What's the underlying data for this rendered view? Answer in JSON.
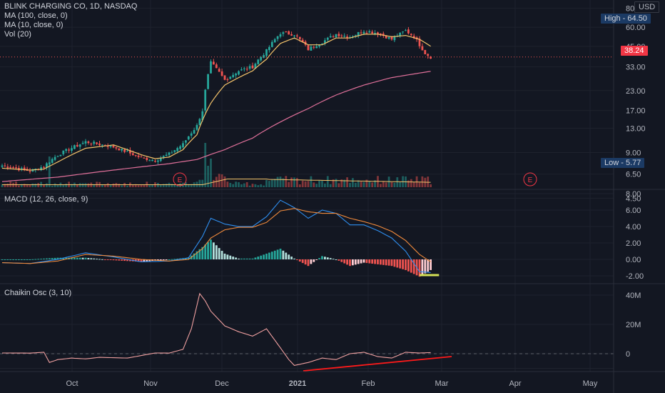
{
  "header": {
    "symbol": "BLINK CHARGING CO, 1D, NASDAQ",
    "ma100": "MA (100, close, 0)",
    "ma10": "MA (10, close, 0)",
    "vol": "Vol (20)",
    "currency": "USD"
  },
  "tags": {
    "high": "High  -  64.50",
    "low": "Low  -  5.77",
    "last": "38.24"
  },
  "panes": {
    "macd_label": "MACD (12, 26, close, 9)",
    "chaikin_label": "Chaikin Osc (3, 10)"
  },
  "earnings_marker": "E",
  "colors": {
    "background": "#131722",
    "up": "#26a69a",
    "down": "#ef5350",
    "ma10": "#f5c46b",
    "ma100": "#e0709a",
    "macd": "#2f8ff0",
    "signal": "#f08a3c",
    "chaikin": "#f0a0a0",
    "trendline": "#ff1a1a",
    "high_tag": "#1b3a64",
    "low_tag": "#1b3a64",
    "last_tag": "#f23645"
  },
  "chart_data": [
    {
      "type": "candlestick",
      "title": "BLINK CHARGING CO, 1D, NASDAQ",
      "y_scale": "log",
      "y_ticks": [
        4.5,
        6.5,
        9.0,
        13.0,
        17.0,
        23.0,
        33.0,
        45.0,
        60.0,
        80
      ],
      "y_tick_labels": [
        "4.50",
        "6.50",
        "9.00",
        "13.00",
        "17.00",
        "23.00",
        "33.00",
        "45.00",
        "60.00",
        "80"
      ],
      "x_tick_labels": [
        "Oct",
        "Nov",
        "Dec",
        "2021",
        "Feb",
        "Mar",
        "Apr",
        "May"
      ],
      "high": 64.5,
      "low": 5.77,
      "last": 38.24,
      "series_anchors": {
        "close": [
          [
            0,
            7.4
          ],
          [
            10,
            6.8
          ],
          [
            15,
            7.3
          ],
          [
            20,
            8.7
          ],
          [
            30,
            10.6
          ],
          [
            40,
            9.8
          ],
          [
            50,
            8.3
          ],
          [
            55,
            8.0
          ],
          [
            60,
            8.8
          ],
          [
            65,
            10.2
          ],
          [
            70,
            13.5
          ],
          [
            72,
            17
          ],
          [
            75,
            35
          ],
          [
            80,
            27
          ],
          [
            85,
            31
          ],
          [
            90,
            33
          ],
          [
            95,
            42
          ],
          [
            100,
            55
          ],
          [
            105,
            54
          ],
          [
            110,
            43
          ],
          [
            115,
            48
          ],
          [
            120,
            54
          ],
          [
            125,
            52
          ],
          [
            130,
            57
          ],
          [
            135,
            55
          ],
          [
            140,
            50
          ],
          [
            145,
            57
          ],
          [
            148,
            52
          ],
          [
            150,
            46
          ],
          [
            152,
            40.5
          ],
          [
            154,
            38.24
          ]
        ],
        "ma10": [
          [
            0,
            7.1
          ],
          [
            10,
            6.9
          ],
          [
            15,
            7.0
          ],
          [
            20,
            7.8
          ],
          [
            30,
            9.6
          ],
          [
            40,
            10.1
          ],
          [
            50,
            8.7
          ],
          [
            55,
            8.2
          ],
          [
            60,
            8.4
          ],
          [
            65,
            9.4
          ],
          [
            70,
            11.8
          ],
          [
            75,
            19
          ],
          [
            80,
            25
          ],
          [
            85,
            28
          ],
          [
            90,
            31
          ],
          [
            95,
            37
          ],
          [
            100,
            47
          ],
          [
            105,
            51
          ],
          [
            110,
            46
          ],
          [
            115,
            46
          ],
          [
            120,
            51
          ],
          [
            125,
            51
          ],
          [
            130,
            54
          ],
          [
            135,
            54
          ],
          [
            140,
            52
          ],
          [
            145,
            53
          ],
          [
            150,
            50
          ],
          [
            154,
            45
          ]
        ],
        "ma100": [
          [
            0,
            5.8
          ],
          [
            20,
            6.2
          ],
          [
            40,
            6.9
          ],
          [
            60,
            7.6
          ],
          [
            70,
            8.1
          ],
          [
            80,
            9.4
          ],
          [
            90,
            11.2
          ],
          [
            100,
            14.3
          ],
          [
            110,
            17.5
          ],
          [
            120,
            21.5
          ],
          [
            130,
            25.0
          ],
          [
            140,
            28.0
          ],
          [
            150,
            30.0
          ],
          [
            154,
            30.8
          ]
        ]
      }
    },
    {
      "type": "line",
      "title": "MACD (12, 26, close, 9)",
      "y_ticks": [
        -2.0,
        0.0,
        2.0,
        4.0,
        6.0,
        8.0
      ],
      "y_tick_labels": [
        "-2.00",
        "0.00",
        "2.00",
        "4.00",
        "6.00",
        "8.00"
      ],
      "series": [
        {
          "name": "MACD",
          "anchors": [
            [
              0,
              -0.4
            ],
            [
              10,
              -0.5
            ],
            [
              20,
              0.0
            ],
            [
              30,
              0.8
            ],
            [
              40,
              0.3
            ],
            [
              50,
              -0.3
            ],
            [
              60,
              -0.2
            ],
            [
              67,
              0.2
            ],
            [
              72,
              2.8
            ],
            [
              75,
              5.0
            ],
            [
              80,
              4.3
            ],
            [
              85,
              4.0
            ],
            [
              90,
              4.0
            ],
            [
              95,
              5.2
            ],
            [
              100,
              7.2
            ],
            [
              105,
              6.3
            ],
            [
              110,
              5.0
            ],
            [
              115,
              6.0
            ],
            [
              120,
              5.6
            ],
            [
              125,
              4.2
            ],
            [
              130,
              4.2
            ],
            [
              135,
              3.5
            ],
            [
              140,
              2.6
            ],
            [
              145,
              1.0
            ],
            [
              150,
              -1.5
            ],
            [
              154,
              -1.6
            ]
          ]
        },
        {
          "name": "Signal",
          "anchors": [
            [
              0,
              -0.4
            ],
            [
              10,
              -0.5
            ],
            [
              20,
              -0.2
            ],
            [
              30,
              0.6
            ],
            [
              40,
              0.4
            ],
            [
              50,
              0.0
            ],
            [
              60,
              -0.2
            ],
            [
              67,
              0.0
            ],
            [
              72,
              1.3
            ],
            [
              75,
              2.6
            ],
            [
              80,
              3.6
            ],
            [
              85,
              3.9
            ],
            [
              90,
              3.9
            ],
            [
              95,
              4.5
            ],
            [
              100,
              5.9
            ],
            [
              105,
              6.2
            ],
            [
              110,
              5.8
            ],
            [
              115,
              5.6
            ],
            [
              120,
              5.6
            ],
            [
              125,
              5.0
            ],
            [
              130,
              4.6
            ],
            [
              135,
              4.1
            ],
            [
              140,
              3.4
            ],
            [
              145,
              2.3
            ],
            [
              150,
              0.6
            ],
            [
              154,
              -0.3
            ]
          ]
        }
      ]
    },
    {
      "type": "line",
      "title": "Chaikin Osc (3, 10)",
      "y_ticks": [
        0,
        20,
        40
      ],
      "y_tick_labels": [
        "0",
        "20M",
        "40M"
      ],
      "series": [
        {
          "name": "Chaikin Osc",
          "anchors": [
            [
              0,
              0.5
            ],
            [
              10,
              0.4
            ],
            [
              15,
              1.0
            ],
            [
              17,
              -6
            ],
            [
              20,
              -4
            ],
            [
              25,
              -3
            ],
            [
              30,
              -3.5
            ],
            [
              35,
              -2.5
            ],
            [
              45,
              -3
            ],
            [
              55,
              0.5
            ],
            [
              60,
              0.4
            ],
            [
              65,
              3
            ],
            [
              68,
              17
            ],
            [
              71,
              41
            ],
            [
              73,
              36
            ],
            [
              75,
              29
            ],
            [
              80,
              19
            ],
            [
              85,
              15
            ],
            [
              90,
              12
            ],
            [
              95,
              17
            ],
            [
              100,
              4
            ],
            [
              103,
              -4
            ],
            [
              105,
              -8
            ],
            [
              110,
              -6
            ],
            [
              115,
              -3
            ],
            [
              120,
              -4
            ],
            [
              125,
              0
            ],
            [
              130,
              1
            ],
            [
              135,
              -2
            ],
            [
              140,
              -3
            ],
            [
              145,
              1
            ],
            [
              150,
              0.5
            ],
            [
              154,
              0.8
            ]
          ]
        }
      ]
    }
  ]
}
